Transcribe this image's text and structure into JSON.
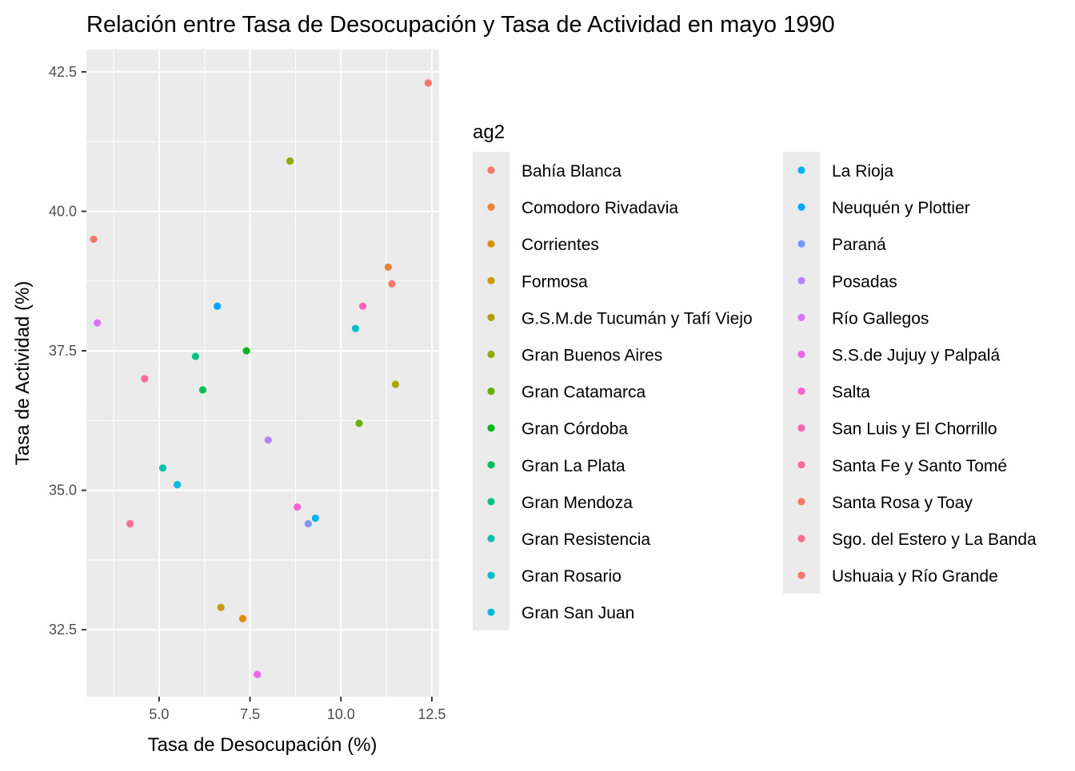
{
  "chart_data": {
    "type": "scatter",
    "title": "Relación entre Tasa de Desocupación y Tasa de Actividad en mayo 1990",
    "xlabel": "Tasa de Desocupación (%)",
    "ylabel": "Tasa de Actividad (%)",
    "xlim": [
      3.0,
      12.7
    ],
    "ylim": [
      31.3,
      42.9
    ],
    "xticks": [
      5.0,
      7.5,
      10.0,
      12.5
    ],
    "xtick_labels": [
      "5.0",
      "7.5",
      "10.0",
      "12.5"
    ],
    "yticks": [
      32.5,
      35.0,
      37.5,
      40.0,
      42.5
    ],
    "ytick_labels": [
      "32.5",
      "35.0",
      "37.5",
      "40.0",
      "42.5"
    ],
    "grid": true,
    "legend": {
      "title": "ag2",
      "position": "right",
      "columns": 2
    },
    "series": [
      {
        "name": "Bahía Blanca",
        "color": "#F8766D",
        "x": [
          11.4
        ],
        "y": [
          38.7
        ]
      },
      {
        "name": "Comodoro Rivadavia",
        "color": "#EC8239",
        "x": [
          11.3
        ],
        "y": [
          39.0
        ]
      },
      {
        "name": "Corrientes",
        "color": "#DB8E00",
        "x": [
          7.3
        ],
        "y": [
          32.7
        ]
      },
      {
        "name": "Formosa",
        "color": "#C79800",
        "x": [
          6.7
        ],
        "y": [
          32.9
        ]
      },
      {
        "name": "G.S.M.de Tucumán y Tafí Viejo",
        "color": "#AEA200",
        "x": [
          11.5
        ],
        "y": [
          36.9
        ]
      },
      {
        "name": "Gran Buenos Aires",
        "color": "#8FAA00",
        "x": [
          8.6
        ],
        "y": [
          40.9
        ]
      },
      {
        "name": "Gran Catamarca",
        "color": "#64B200",
        "x": [
          10.5
        ],
        "y": [
          36.2
        ]
      },
      {
        "name": "Gran Córdoba",
        "color": "#00B81B",
        "x": [
          7.4
        ],
        "y": [
          37.5
        ]
      },
      {
        "name": "Gran La Plata",
        "color": "#00BD5C",
        "x": [
          6.2
        ],
        "y": [
          36.8
        ]
      },
      {
        "name": "Gran Mendoza",
        "color": "#00C085",
        "x": [
          6.0
        ],
        "y": [
          37.4
        ]
      },
      {
        "name": "Gran Resistencia",
        "color": "#00C1A7",
        "x": [
          5.1
        ],
        "y": [
          35.4
        ]
      },
      {
        "name": "Gran Rosario",
        "color": "#00BFC4",
        "x": [
          10.4
        ],
        "y": [
          37.9
        ]
      },
      {
        "name": "Gran San Juan",
        "color": "#00BADE",
        "x": [
          5.5
        ],
        "y": [
          35.1
        ]
      },
      {
        "name": "La Rioja",
        "color": "#00B2F3",
        "x": [
          9.3
        ],
        "y": [
          34.5
        ]
      },
      {
        "name": "Neuquén y Plottier",
        "color": "#00A6FF",
        "x": [
          6.6
        ],
        "y": [
          38.3
        ]
      },
      {
        "name": "Paraná",
        "color": "#7C96FF",
        "x": [
          9.1
        ],
        "y": [
          34.4
        ]
      },
      {
        "name": "Posadas",
        "color": "#B385FF",
        "x": [
          8.0
        ],
        "y": [
          35.9
        ]
      },
      {
        "name": "Río Gallegos",
        "color": "#D874FD",
        "x": [
          3.3
        ],
        "y": [
          38.0
        ]
      },
      {
        "name": "S.S.de Jujuy y Palpalá",
        "color": "#EF67EB",
        "x": [
          7.7
        ],
        "y": [
          31.7
        ]
      },
      {
        "name": "Salta",
        "color": "#FD61D3",
        "x": [
          8.8
        ],
        "y": [
          34.7
        ]
      },
      {
        "name": "San Luis y El Chorrillo",
        "color": "#FF63B6",
        "x": [
          10.6
        ],
        "y": [
          38.3
        ]
      },
      {
        "name": "Santa Fe y Santo Tomé",
        "color": "#FF6B94",
        "x": [
          4.6
        ],
        "y": [
          37.0
        ]
      },
      {
        "name": "Santa Rosa y Toay",
        "color": "#F8766D",
        "x": [
          3.2
        ],
        "y": [
          39.5
        ]
      },
      {
        "name": "Sgo. del Estero y La Banda",
        "color": "#FF6C91",
        "x": [
          4.2
        ],
        "y": [
          34.4
        ]
      },
      {
        "name": "Ushuaia y Río Grande",
        "color": "#F8766D",
        "x": [
          12.4
        ],
        "y": [
          42.3
        ]
      }
    ]
  }
}
